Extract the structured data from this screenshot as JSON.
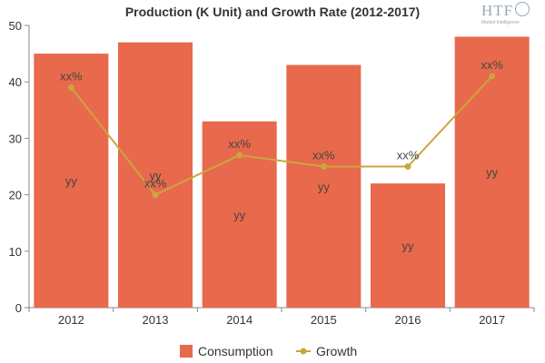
{
  "chart_data": {
    "type": "bar",
    "title": "Production (K Unit) and Growth Rate (2012-2017)",
    "categories": [
      "2012",
      "2013",
      "2014",
      "2015",
      "2016",
      "2017"
    ],
    "ylim": [
      0,
      50
    ],
    "yticks": [
      "0",
      "10",
      "20",
      "30",
      "40",
      "50"
    ],
    "series": [
      {
        "name": "Consumption",
        "kind": "bar",
        "color": "#e8694b",
        "values": [
          45,
          47,
          33,
          43,
          22,
          48
        ],
        "labels": [
          "yy",
          "yy",
          "yy",
          "yy",
          "yy",
          "yy"
        ]
      },
      {
        "name": "Growth",
        "kind": "line",
        "color": "#c9a640",
        "values": [
          39,
          20,
          27,
          25,
          25,
          41
        ],
        "labels": [
          "xx%",
          "xx%",
          "xx%",
          "xx%",
          "xx%",
          "xx%"
        ]
      }
    ],
    "legend": "bottom",
    "grid": false
  },
  "logo": {
    "name": "HTF",
    "tagline": "Market Intelligence"
  }
}
